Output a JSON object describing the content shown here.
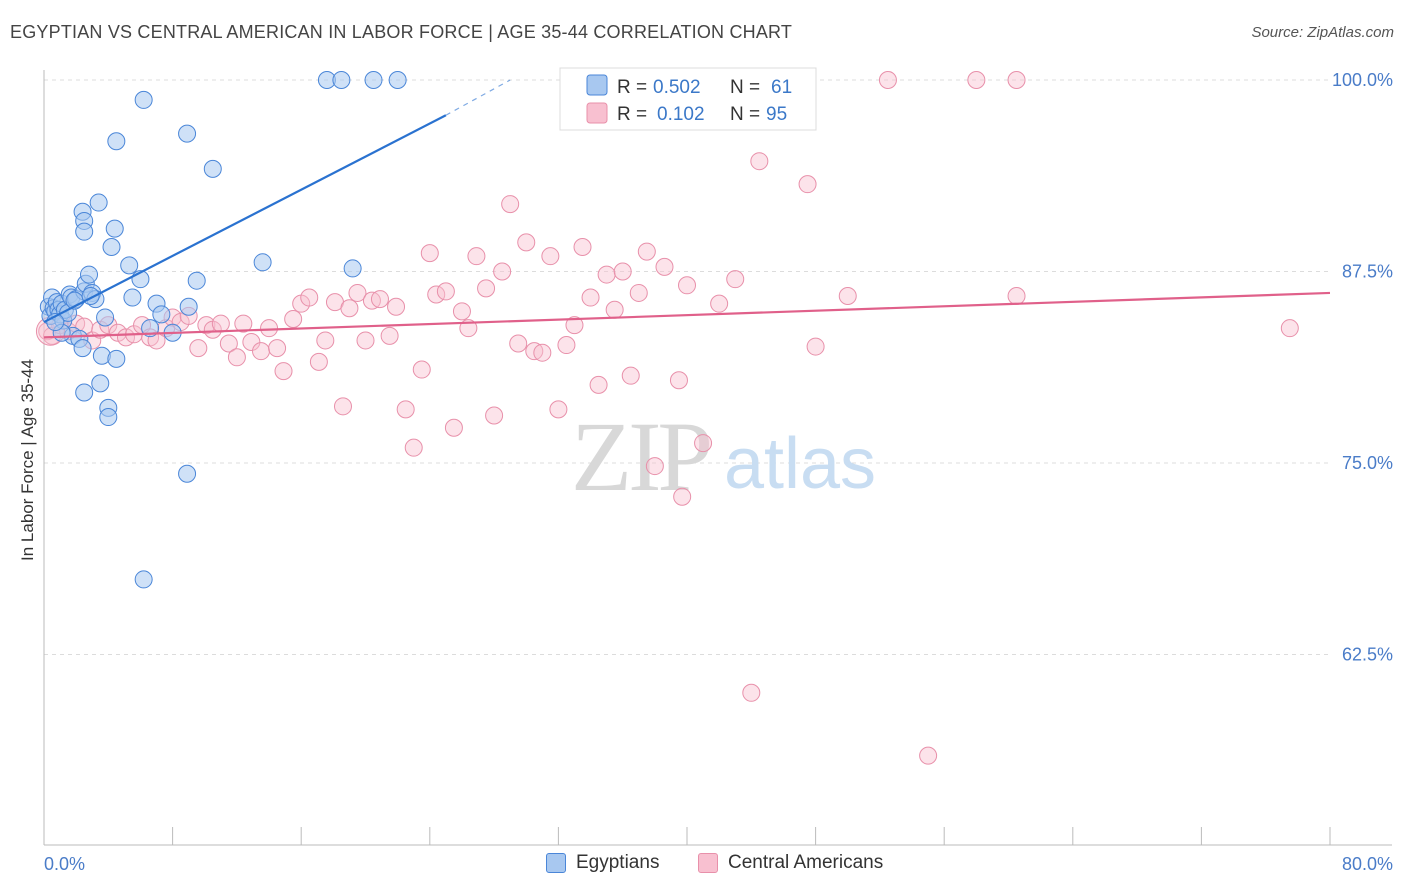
{
  "title": "EGYPTIAN VS CENTRAL AMERICAN IN LABOR FORCE | AGE 35-44 CORRELATION CHART",
  "source": "Source: ZipAtlas.com",
  "watermark": {
    "zip": "ZIP",
    "atlas": "atlas"
  },
  "legend_top": {
    "r_label": "R =",
    "n_label": "N =",
    "rows": [
      {
        "r": "0.502",
        "n": "61"
      },
      {
        "r": "0.102",
        "n": "95"
      }
    ]
  },
  "legend_bottom": [
    "Egyptians",
    "Central Americans"
  ],
  "colors": {
    "blue_fill": "#a8c8f0",
    "blue_stroke": "#4a86d8",
    "blue_line": "#2a72d0",
    "pink_fill": "#f8c0d0",
    "pink_stroke": "#e890aa",
    "pink_line": "#e0608a",
    "axis_text": "#4a7cc8"
  },
  "chart_data": {
    "type": "scatter",
    "title": "EGYPTIAN VS CENTRAL AMERICAN IN LABOR FORCE | AGE 35-44 CORRELATION CHART",
    "xlabel": "",
    "ylabel": "In Labor Force | Age 35-44",
    "xlim": [
      0,
      80
    ],
    "ylim": [
      51,
      101
    ],
    "x_tick_labels": [
      "0.0%",
      "80.0%"
    ],
    "y_ticks": [
      62.5,
      75.0,
      87.5,
      100.0
    ],
    "y_tick_labels": [
      "62.5%",
      "75.0%",
      "87.5%",
      "100.0%"
    ],
    "grid": true,
    "series": [
      {
        "name": "Egyptians",
        "R": 0.502,
        "N": 61,
        "trend": {
          "x0": 0.0,
          "y0": 84.2,
          "x1": 25.0,
          "y1": 97.7,
          "dash_to_x": 29.0,
          "dash_to_y": 100.0
        },
        "points": [
          [
            0.3,
            85.2
          ],
          [
            0.4,
            84.6
          ],
          [
            0.5,
            85.8
          ],
          [
            0.6,
            85.1
          ],
          [
            0.7,
            84.9
          ],
          [
            0.8,
            85.5
          ],
          [
            0.9,
            85.0
          ],
          [
            1.0,
            84.7
          ],
          [
            1.1,
            85.4
          ],
          [
            1.2,
            84.3
          ],
          [
            1.3,
            85.0
          ],
          [
            1.5,
            84.8
          ],
          [
            1.6,
            86.0
          ],
          [
            1.7,
            85.8
          ],
          [
            1.8,
            83.3
          ],
          [
            2.0,
            85.7
          ],
          [
            2.2,
            83.1
          ],
          [
            2.4,
            82.5
          ],
          [
            2.5,
            86.2
          ],
          [
            2.6,
            86.7
          ],
          [
            2.8,
            87.3
          ],
          [
            3.0,
            86.1
          ],
          [
            3.2,
            85.7
          ],
          [
            2.5,
            79.6
          ],
          [
            3.5,
            80.2
          ],
          [
            3.8,
            84.5
          ],
          [
            3.6,
            82.0
          ],
          [
            4.0,
            78.6
          ],
          [
            4.0,
            78.0
          ],
          [
            4.5,
            81.8
          ],
          [
            5.5,
            85.8
          ],
          [
            6.0,
            87.0
          ],
          [
            7.0,
            85.4
          ],
          [
            8.0,
            83.5
          ],
          [
            9.0,
            85.2
          ],
          [
            9.5,
            86.9
          ],
          [
            2.4,
            91.4
          ],
          [
            2.5,
            90.8
          ],
          [
            2.5,
            90.1
          ],
          [
            3.4,
            92.0
          ],
          [
            4.2,
            89.1
          ],
          [
            4.4,
            90.3
          ],
          [
            5.3,
            87.9
          ],
          [
            4.5,
            96.0
          ],
          [
            6.2,
            98.7
          ],
          [
            8.9,
            96.5
          ],
          [
            10.5,
            94.2
          ],
          [
            13.6,
            88.1
          ],
          [
            19.2,
            87.7
          ],
          [
            17.6,
            100.0
          ],
          [
            18.5,
            100.0
          ],
          [
            20.5,
            100.0
          ],
          [
            22.0,
            100.0
          ],
          [
            8.9,
            74.3
          ],
          [
            6.2,
            67.4
          ],
          [
            6.6,
            83.8
          ],
          [
            1.1,
            83.5
          ],
          [
            1.9,
            85.6
          ],
          [
            2.9,
            85.9
          ],
          [
            0.7,
            84.2
          ],
          [
            7.3,
            84.7
          ]
        ]
      },
      {
        "name": "Central Americans",
        "R": 0.102,
        "N": 95,
        "trend": {
          "x0": 0.0,
          "y0": 83.2,
          "x1": 80.0,
          "y1": 86.1
        },
        "points": [
          [
            0.2,
            83.6
          ],
          [
            0.5,
            83.3
          ],
          [
            1.0,
            84.0
          ],
          [
            1.5,
            83.6
          ],
          [
            2.0,
            84.1
          ],
          [
            2.5,
            83.9
          ],
          [
            3.0,
            83.0
          ],
          [
            3.5,
            83.7
          ],
          [
            4.0,
            84.0
          ],
          [
            4.6,
            83.5
          ],
          [
            5.1,
            83.2
          ],
          [
            5.6,
            83.4
          ],
          [
            6.1,
            84.0
          ],
          [
            6.6,
            83.2
          ],
          [
            7.0,
            83.0
          ],
          [
            7.6,
            83.8
          ],
          [
            8.0,
            84.5
          ],
          [
            8.5,
            84.2
          ],
          [
            9.0,
            84.6
          ],
          [
            9.6,
            82.5
          ],
          [
            10.1,
            84.0
          ],
          [
            10.5,
            83.7
          ],
          [
            11.0,
            84.1
          ],
          [
            11.5,
            82.8
          ],
          [
            12.0,
            81.9
          ],
          [
            12.4,
            84.1
          ],
          [
            12.9,
            82.9
          ],
          [
            13.5,
            82.3
          ],
          [
            14.0,
            83.8
          ],
          [
            14.5,
            82.5
          ],
          [
            14.9,
            81.0
          ],
          [
            15.5,
            84.4
          ],
          [
            16.0,
            85.4
          ],
          [
            16.5,
            85.8
          ],
          [
            17.1,
            81.6
          ],
          [
            17.5,
            83.0
          ],
          [
            18.1,
            85.5
          ],
          [
            18.6,
            78.7
          ],
          [
            19.0,
            85.1
          ],
          [
            19.5,
            86.1
          ],
          [
            20.0,
            83.0
          ],
          [
            20.4,
            85.6
          ],
          [
            20.9,
            85.7
          ],
          [
            21.5,
            83.3
          ],
          [
            21.9,
            85.2
          ],
          [
            22.5,
            78.5
          ],
          [
            23.0,
            76.0
          ],
          [
            23.5,
            81.1
          ],
          [
            24.0,
            88.7
          ],
          [
            24.4,
            86.0
          ],
          [
            25.0,
            86.2
          ],
          [
            25.5,
            77.3
          ],
          [
            26.0,
            84.9
          ],
          [
            26.4,
            83.8
          ],
          [
            26.9,
            88.5
          ],
          [
            27.5,
            86.4
          ],
          [
            28.0,
            78.1
          ],
          [
            28.5,
            87.5
          ],
          [
            29.0,
            91.9
          ],
          [
            29.5,
            82.8
          ],
          [
            30.0,
            89.4
          ],
          [
            30.5,
            82.3
          ],
          [
            31.0,
            82.2
          ],
          [
            31.5,
            88.5
          ],
          [
            32.0,
            78.5
          ],
          [
            32.5,
            82.7
          ],
          [
            33.0,
            84.0
          ],
          [
            33.5,
            89.1
          ],
          [
            34.0,
            85.8
          ],
          [
            34.5,
            80.1
          ],
          [
            35.0,
            87.3
          ],
          [
            35.5,
            85.0
          ],
          [
            36.0,
            87.5
          ],
          [
            36.5,
            80.7
          ],
          [
            37.0,
            86.1
          ],
          [
            37.5,
            88.8
          ],
          [
            38.0,
            74.8
          ],
          [
            38.6,
            87.8
          ],
          [
            39.5,
            80.4
          ],
          [
            39.7,
            72.8
          ],
          [
            40.0,
            86.6
          ],
          [
            41.0,
            76.3
          ],
          [
            42.0,
            85.4
          ],
          [
            43.0,
            87.0
          ],
          [
            44.0,
            60.0
          ],
          [
            44.5,
            94.7
          ],
          [
            47.5,
            93.2
          ],
          [
            48.0,
            82.6
          ],
          [
            50.0,
            85.9
          ],
          [
            52.5,
            100.0
          ],
          [
            55.0,
            55.9
          ],
          [
            58.0,
            100.0
          ],
          [
            60.5,
            100.0
          ],
          [
            60.5,
            85.9
          ],
          [
            77.5,
            83.8
          ]
        ]
      }
    ]
  }
}
